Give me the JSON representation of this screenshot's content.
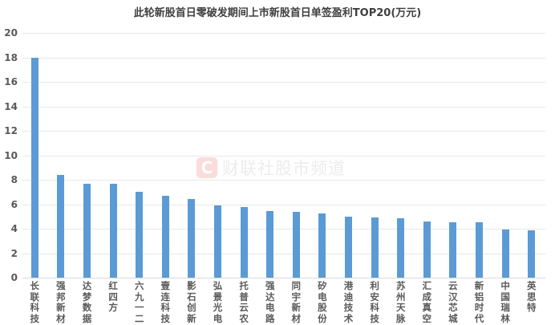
{
  "chart_data": {
    "type": "bar",
    "title": "此轮新股首日零破发期间上市新股首日单签盈利TOP20(万元)",
    "xlabel": "",
    "ylabel": "",
    "ylim": [
      0,
      20
    ],
    "yticks": [
      0,
      2,
      4,
      6,
      8,
      10,
      12,
      14,
      16,
      18,
      20
    ],
    "grid": true,
    "legend": null,
    "bar_color": "#5b9bd5",
    "categories": [
      "长联科技",
      "强邦新材",
      "达梦数据",
      "红四方",
      "六九一二",
      "壹连科技",
      "影石创新",
      "弘景光电",
      "托普云农",
      "强达电路",
      "同宇新材",
      "矽电股份",
      "港迪技术",
      "利安科技",
      "苏州天脉",
      "汇成真空",
      "云汉芯城",
      "新铝时代",
      "中国瑞林",
      "英思特"
    ],
    "values": [
      18.0,
      8.4,
      7.7,
      7.65,
      7.0,
      6.7,
      6.45,
      5.9,
      5.8,
      5.45,
      5.35,
      5.25,
      5.0,
      4.9,
      4.85,
      4.6,
      4.5,
      4.5,
      3.95,
      3.85
    ]
  },
  "watermark": {
    "icon_letter": "C",
    "text": "财联社股市频道"
  }
}
